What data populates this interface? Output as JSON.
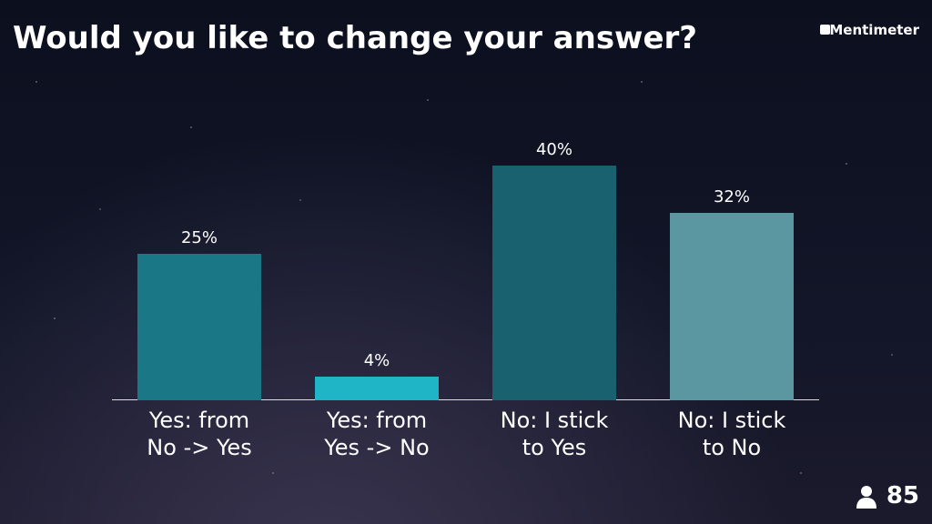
{
  "chart_data": {
    "type": "bar",
    "title": "Would you like to change your answer?",
    "categories": [
      "Yes: from\nNo -> Yes",
      "Yes: from\nYes -> No",
      "No: I stick\nto Yes",
      "No: I stick\nto No"
    ],
    "values": [
      25,
      4,
      40,
      32
    ],
    "value_labels": [
      "25%",
      "4%",
      "40%",
      "32%"
    ],
    "colors": [
      "#1a7886",
      "#1fb4c6",
      "#1a6170",
      "#5b97a0"
    ],
    "ylim": [
      0,
      40
    ]
  },
  "brand": "Mentimeter",
  "participants": "85"
}
